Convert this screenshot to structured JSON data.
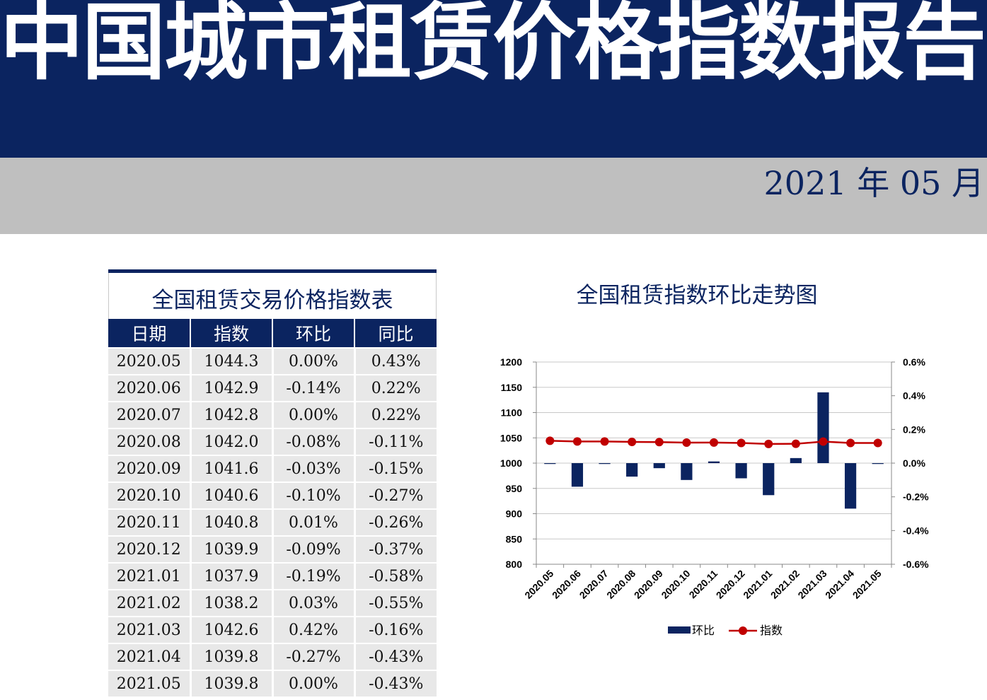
{
  "header": {
    "title": "中国城市租赁价格指数报告",
    "date": "2021 年 05 月"
  },
  "table": {
    "title": "全国租赁交易价格指数表",
    "columns": [
      "日期",
      "指数",
      "环比",
      "同比"
    ],
    "rows": [
      [
        "2020.05",
        "1044.3",
        "0.00%",
        "0.43%"
      ],
      [
        "2020.06",
        "1042.9",
        "-0.14%",
        "0.22%"
      ],
      [
        "2020.07",
        "1042.8",
        "0.00%",
        "0.22%"
      ],
      [
        "2020.08",
        "1042.0",
        "-0.08%",
        "-0.11%"
      ],
      [
        "2020.09",
        "1041.6",
        "-0.03%",
        "-0.15%"
      ],
      [
        "2020.10",
        "1040.6",
        "-0.10%",
        "-0.27%"
      ],
      [
        "2020.11",
        "1040.8",
        "0.01%",
        "-0.26%"
      ],
      [
        "2020.12",
        "1039.9",
        "-0.09%",
        "-0.37%"
      ],
      [
        "2021.01",
        "1037.9",
        "-0.19%",
        "-0.58%"
      ],
      [
        "2021.02",
        "1038.2",
        "0.03%",
        "-0.55%"
      ],
      [
        "2021.03",
        "1042.6",
        "0.42%",
        "-0.16%"
      ],
      [
        "2021.04",
        "1039.8",
        "-0.27%",
        "-0.43%"
      ],
      [
        "2021.05",
        "1039.8",
        "0.00%",
        "-0.43%"
      ]
    ]
  },
  "chart_data": {
    "type": "bar",
    "title": "全国租赁指数环比走势图",
    "categories": [
      "2020.05",
      "2020.06",
      "2020.07",
      "2020.08",
      "2020.09",
      "2020.10",
      "2020.11",
      "2020.12",
      "2021.01",
      "2021.02",
      "2021.03",
      "2021.04",
      "2021.05"
    ],
    "series": [
      {
        "name": "环比",
        "type": "bar",
        "axis": "right",
        "color": "#0b2460",
        "values": [
          0.0,
          -0.14,
          0.0,
          -0.08,
          -0.03,
          -0.1,
          0.01,
          -0.09,
          -0.19,
          0.03,
          0.42,
          -0.27,
          0.0
        ]
      },
      {
        "name": "指数",
        "type": "line",
        "axis": "left",
        "color": "#c00000",
        "values": [
          1044.3,
          1042.9,
          1042.8,
          1042.0,
          1041.6,
          1040.6,
          1040.8,
          1039.9,
          1037.9,
          1038.2,
          1042.6,
          1039.8,
          1039.8
        ]
      }
    ],
    "left_axis": {
      "ylim": [
        800,
        1200
      ],
      "ticks": [
        "1200",
        "1150",
        "1100",
        "1050",
        "1000",
        "950",
        "900",
        "850",
        "800"
      ]
    },
    "right_axis": {
      "ylim": [
        -0.6,
        0.6
      ],
      "ticks": [
        "0.6%",
        "0.4%",
        "0.2%",
        "0.0%",
        "-0.2%",
        "-0.4%",
        "-0.6%"
      ]
    },
    "grid": "horizontal",
    "legend": "bottom"
  }
}
